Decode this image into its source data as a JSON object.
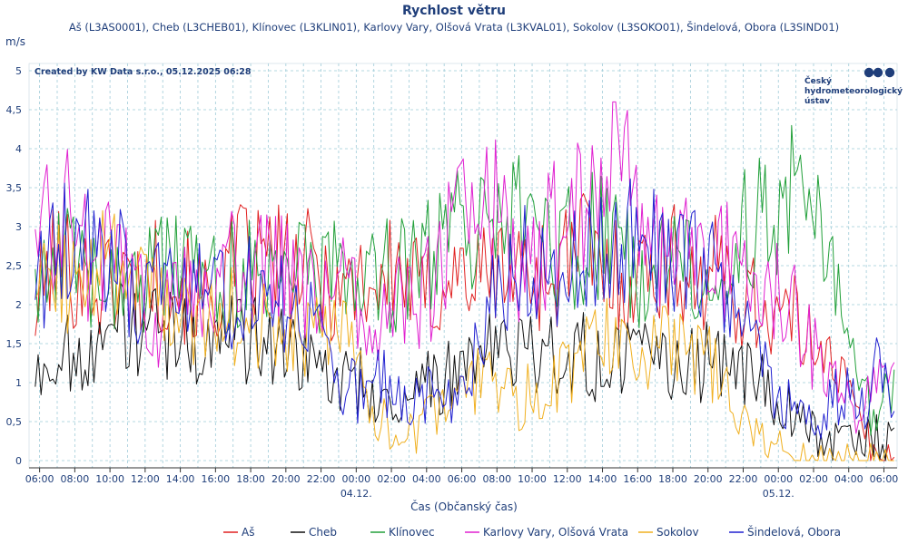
{
  "chart_data": {
    "type": "line",
    "title": "Rychlost větru",
    "subtitle": "Aš (L3AS0001), Cheb (L3CHEB01), Klínovec (L3KLIN01), Karlovy Vary, Olšová Vrata (L3KVAL01), Sokolov (L3SOKO01), Šindelová, Obora (L3SIND01)",
    "ylabel": "m/s",
    "xlabel": "Čas (Občanský čas)",
    "credit": "Created by KW Data s.r.o., 05.12.2025 06:28",
    "logo_text": [
      "Český",
      "hydrometeorologický",
      "ústav"
    ],
    "ylim": [
      0,
      5
    ],
    "y_ticks": [
      "0",
      "0,5",
      "1",
      "1,5",
      "2",
      "2,5",
      "3",
      "3,5",
      "4",
      "4,5",
      "5"
    ],
    "x_range_hours": [
      -18.6,
      30.75
    ],
    "x_ticks": [
      {
        "hour": -18,
        "label": "06:00"
      },
      {
        "hour": -16,
        "label": "08:00"
      },
      {
        "hour": -14,
        "label": "10:00"
      },
      {
        "hour": -12,
        "label": "12:00"
      },
      {
        "hour": -10,
        "label": "14:00"
      },
      {
        "hour": -8,
        "label": "16:00"
      },
      {
        "hour": -6,
        "label": "18:00"
      },
      {
        "hour": -4,
        "label": "20:00"
      },
      {
        "hour": -2,
        "label": "22:00"
      },
      {
        "hour": 0,
        "label": "00:00"
      },
      {
        "hour": 2,
        "label": "02:00"
      },
      {
        "hour": 4,
        "label": "04:00"
      },
      {
        "hour": 6,
        "label": "06:00"
      },
      {
        "hour": 8,
        "label": "08:00"
      },
      {
        "hour": 10,
        "label": "10:00"
      },
      {
        "hour": 12,
        "label": "12:00"
      },
      {
        "hour": 14,
        "label": "14:00"
      },
      {
        "hour": 16,
        "label": "16:00"
      },
      {
        "hour": 18,
        "label": "18:00"
      },
      {
        "hour": 20,
        "label": "20:00"
      },
      {
        "hour": 22,
        "label": "22:00"
      },
      {
        "hour": 24,
        "label": "00:00"
      },
      {
        "hour": 26,
        "label": "02:00"
      },
      {
        "hour": 28,
        "label": "04:00"
      },
      {
        "hour": 30,
        "label": "06:00"
      }
    ],
    "date_labels": [
      {
        "hour": 0,
        "label": "04.12."
      },
      {
        "hour": 24,
        "label": "05.12."
      }
    ],
    "x_start_hour": -18.25,
    "step_minutes": 10,
    "series": [
      {
        "name": "Aš",
        "color": "#e02020",
        "anchors": [
          1.9,
          2.6,
          2.5,
          2.3,
          2.2,
          2.4,
          2.2,
          2.4,
          2.3,
          2.2,
          2.0,
          2.3,
          2.6,
          2.5,
          2.6,
          2.3,
          2.5,
          2.3,
          2.2,
          2.4,
          2.2,
          2.5,
          2.2,
          2.1,
          2.4,
          2.4,
          2.3,
          2.5,
          2.4,
          2.5,
          2.3,
          2.6,
          2.8,
          2.4,
          2.4,
          2.3,
          2.6,
          2.5,
          2.5,
          2.2,
          2.5,
          2.1,
          2.0,
          1.9,
          1.8,
          1.5,
          1.7,
          1.0,
          0.5,
          0.0,
          0.0
        ]
      },
      {
        "name": "Cheb",
        "color": "#111111",
        "anchors": [
          1.1,
          1.3,
          1.4,
          1.5,
          1.6,
          1.7,
          1.6,
          1.7,
          1.6,
          1.5,
          1.7,
          1.6,
          1.5,
          1.6,
          1.5,
          1.4,
          1.3,
          1.1,
          1.0,
          1.0,
          0.8,
          0.8,
          0.9,
          1.0,
          1.1,
          1.2,
          1.3,
          1.5,
          1.4,
          1.3,
          1.4,
          1.3,
          1.4,
          1.2,
          1.3,
          1.2,
          1.4,
          1.1,
          1.2,
          1.3,
          1.2,
          1.1,
          1.0,
          0.9,
          0.6,
          0.4,
          0.3,
          0.3,
          0.3,
          0.3,
          0.3
        ]
      },
      {
        "name": "Klínovec",
        "color": "#22a03a",
        "anchors": [
          2.6,
          2.5,
          2.5,
          2.4,
          2.5,
          2.4,
          2.3,
          2.4,
          2.4,
          2.3,
          2.4,
          2.2,
          2.5,
          2.4,
          2.4,
          2.5,
          2.3,
          2.4,
          2.2,
          2.3,
          2.3,
          2.4,
          2.5,
          2.6,
          2.8,
          2.9,
          3.0,
          2.8,
          3.1,
          2.9,
          2.8,
          2.7,
          2.8,
          2.9,
          2.7,
          2.4,
          2.5,
          2.6,
          2.4,
          2.4,
          2.3,
          2.8,
          3.2,
          3.0,
          3.4,
          3.3,
          2.8,
          1.6,
          0.8,
          0.6,
          0.9
        ]
      },
      {
        "name": "Karlovy Vary, Olšová Vrata",
        "color": "#e020d0",
        "anchors": [
          3.0,
          3.0,
          3.1,
          2.6,
          2.6,
          2.3,
          2.4,
          1.5,
          2.1,
          2.2,
          2.0,
          2.3,
          2.6,
          2.5,
          2.4,
          2.5,
          2.2,
          2.1,
          2.3,
          2.0,
          1.8,
          2.0,
          2.1,
          2.2,
          2.8,
          3.5,
          3.9,
          3.0,
          2.6,
          2.4,
          2.9,
          3.3,
          3.1,
          3.7,
          4.2,
          3.2,
          2.8,
          2.5,
          3.1,
          2.9,
          2.6,
          2.4,
          2.3,
          2.3,
          2.0,
          1.5,
          1.1,
          0.8,
          0.5,
          0.9,
          0.9
        ]
      },
      {
        "name": "Sokolov",
        "color": "#f0b020",
        "anchors": [
          2.0,
          2.3,
          2.4,
          2.2,
          2.5,
          2.4,
          2.1,
          2.0,
          1.8,
          1.9,
          1.8,
          1.7,
          2.0,
          1.8,
          1.5,
          1.6,
          1.5,
          1.6,
          1.5,
          1.2,
          0.6,
          0.3,
          0.3,
          0.5,
          0.7,
          0.9,
          1.1,
          1.0,
          0.7,
          0.9,
          1.0,
          1.2,
          1.5,
          1.6,
          1.4,
          1.3,
          1.5,
          1.6,
          1.4,
          1.3,
          1.1,
          0.7,
          0.4,
          0.2,
          0.0,
          0.0,
          0.0,
          0.0,
          0.0,
          0.0,
          0.0
        ]
      },
      {
        "name": "Šindelová, Obora",
        "color": "#2020d0",
        "anchors": [
          1.9,
          2.8,
          2.9,
          2.7,
          2.3,
          2.5,
          2.1,
          2.3,
          2.0,
          2.2,
          2.3,
          2.1,
          2.2,
          2.1,
          2.0,
          1.9,
          1.8,
          1.2,
          1.0,
          0.8,
          1.0,
          0.9,
          0.7,
          0.8,
          0.7,
          0.9,
          1.5,
          2.4,
          2.5,
          2.5,
          2.4,
          2.6,
          2.8,
          2.6,
          2.8,
          2.9,
          2.7,
          2.5,
          2.4,
          2.5,
          2.3,
          2.0,
          1.4,
          1.0,
          0.7,
          0.6,
          0.7,
          0.8,
          0.7,
          1.1,
          1.0
        ]
      }
    ]
  }
}
